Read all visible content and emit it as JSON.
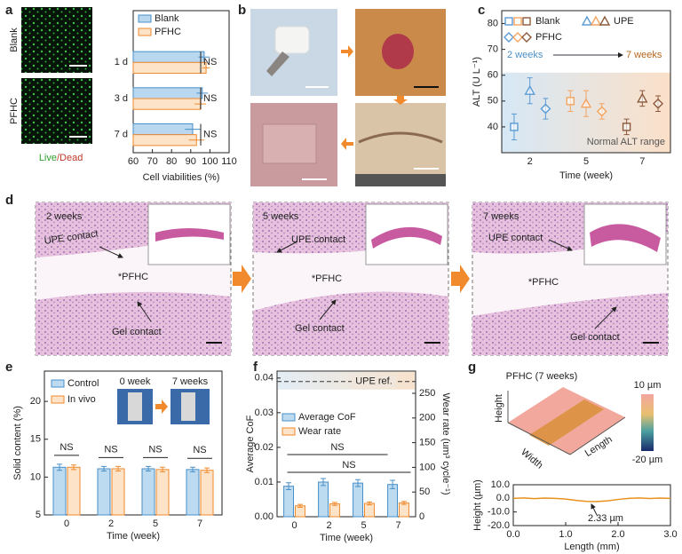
{
  "panel_labels": [
    "a",
    "b",
    "c",
    "d",
    "e",
    "f",
    "g"
  ],
  "panel_a": {
    "row_labels": [
      "Blank",
      "PFHC"
    ],
    "stain": [
      "Live",
      "/Dead"
    ]
  },
  "panel_d": {
    "sections": [
      {
        "time": "2 weeks",
        "upper": "UPE contact",
        "middle": "*PFHC",
        "lower": "Gel contact"
      },
      {
        "time": "5 weeks",
        "upper": "UPE contact",
        "middle": "*PFHC",
        "lower": "Gel contact"
      },
      {
        "time": "7 weeks",
        "upper": "UPE contact",
        "middle": "*PFHC",
        "lower": "Gel contact"
      }
    ]
  },
  "panel_g_surface": {
    "title": "PFHC (7 weeks)",
    "axes": [
      "Height",
      "Width",
      "Length"
    ],
    "colorbar": [
      "10 µm",
      "-20 µm"
    ]
  },
  "chart_data": [
    {
      "type": "bar",
      "orientation": "horizontal",
      "categories": [
        "1 d",
        "3 d",
        "7 d"
      ],
      "series": [
        {
          "name": "Blank",
          "color": "#b9d7ee",
          "edge": "#4a90c8",
          "values": [
            97,
            96,
            91
          ],
          "errors": [
            3,
            3,
            4
          ]
        },
        {
          "name": "PFHC",
          "color": "#fde3c8",
          "edge": "#f08a2c",
          "values": [
            98,
            95,
            93
          ],
          "errors": [
            2,
            3,
            4
          ]
        }
      ],
      "xlim": [
        60,
        110
      ],
      "xticks": [
        60,
        70,
        80,
        90,
        100,
        110
      ],
      "xlabel": "Cell viabilities (%)",
      "annotations": [
        "NS",
        "NS",
        "NS"
      ]
    },
    {
      "type": "scatter",
      "categories": [
        "2",
        "5",
        "7"
      ],
      "series": [
        {
          "name": "Blank",
          "marker": "square",
          "values": [
            40,
            50,
            40
          ],
          "errors": [
            5,
            4,
            3
          ]
        },
        {
          "name": "UPE",
          "marker": "triangle",
          "values": [
            54,
            49,
            51
          ],
          "errors": [
            5,
            5,
            3
          ]
        },
        {
          "name": "PFHC",
          "marker": "diamond",
          "values": [
            47,
            46,
            49
          ],
          "errors": [
            4,
            3,
            3
          ]
        }
      ],
      "colors": [
        "#5b9bd5",
        "#f4a460",
        "#8b5a3c"
      ],
      "ylim": [
        30,
        85
      ],
      "yticks": [
        40,
        50,
        60,
        70,
        80
      ],
      "ylabel": "ALT (U L⁻¹)",
      "xlabel": "Time (week)",
      "normal_range": [
        30,
        61
      ],
      "range_label": "Normal ALT range",
      "arrow_labels": [
        "2 weeks",
        "7 weeks"
      ]
    },
    {
      "type": "bar",
      "categories": [
        "0",
        "2",
        "5",
        "7"
      ],
      "series": [
        {
          "name": "Control",
          "color": "#bcdaf0",
          "edge": "#4a90c8",
          "values": [
            11.3,
            11.1,
            11.1,
            11.0
          ],
          "errors": [
            0.4,
            0.3,
            0.3,
            0.3
          ]
        },
        {
          "name": "In vivo",
          "color": "#fde3c8",
          "edge": "#f08a2c",
          "values": [
            11.3,
            11.1,
            11.0,
            10.9
          ],
          "errors": [
            0.3,
            0.3,
            0.3,
            0.3
          ]
        }
      ],
      "ylim": [
        5,
        24
      ],
      "yticks": [
        5,
        10,
        15,
        20
      ],
      "ylabel": "Solid content (%)",
      "xlabel": "Time (week)",
      "annotations": [
        "NS",
        "NS",
        "NS",
        "NS"
      ],
      "inset_labels": [
        "0 week",
        "7 weeks"
      ]
    },
    {
      "type": "bar",
      "categories": [
        "0",
        "2",
        "5",
        "7"
      ],
      "series": [
        {
          "name": "Average CoF",
          "color": "#bcdaf0",
          "edge": "#4a90c8",
          "values": [
            0.0088,
            0.01,
            0.0097,
            0.0093
          ],
          "errors": [
            0.001,
            0.001,
            0.001,
            0.0012
          ]
        },
        {
          "name": "Wear rate",
          "color": "#fde3c8",
          "edge": "#f08a2c",
          "axis": "y2",
          "values": [
            22,
            26,
            27,
            28
          ],
          "errors": [
            3,
            3,
            3,
            3
          ]
        }
      ],
      "ylim": [
        0,
        0.042
      ],
      "yticks": [
        {
          "value": 0,
          "label": "0.00"
        },
        0.01,
        0.02,
        0.03,
        0.04
      ],
      "y2lim": [
        0,
        295
      ],
      "y2ticks": [
        0,
        50,
        100,
        150,
        200,
        250
      ],
      "ylabel": "Average CoF",
      "y2label": "Wear rate (um³ cycle⁻¹)",
      "xlabel": "Time (week)",
      "reference": {
        "value": 0.039,
        "label": "UPE ref."
      },
      "annotations": [
        "NS",
        "NS"
      ]
    },
    {
      "type": "line",
      "x": [
        0,
        0.2,
        0.4,
        0.6,
        0.8,
        1.0,
        1.2,
        1.4,
        1.6,
        1.8,
        2.0,
        2.2,
        2.4,
        2.6,
        2.8,
        3.0
      ],
      "series": [
        {
          "name": "Height",
          "color": "#e8921e",
          "values": [
            0,
            0.3,
            -0.2,
            0.2,
            0,
            -0.5,
            -1.5,
            -2.2,
            -2.3,
            -1.8,
            -0.8,
            0,
            0.3,
            -0.1,
            0.2,
            0
          ]
        }
      ],
      "xlim": [
        0,
        3
      ],
      "xticks": [
        {
          "value": 0,
          "label": "0.0"
        },
        {
          "value": 1,
          "label": "1.0"
        },
        {
          "value": 2,
          "label": "2.0"
        },
        {
          "value": 3,
          "label": "3.0"
        }
      ],
      "ylim": [
        -20,
        10
      ],
      "yticks": [
        {
          "value": 10,
          "label": "10.0"
        },
        {
          "value": 0,
          "label": "0.0"
        },
        {
          "value": -10,
          "label": "-10.0"
        },
        {
          "value": -20,
          "label": "-20.0"
        }
      ],
      "xlabel": "Length (mm)",
      "ylabel": "Height (µm)",
      "annotation": "2.33 µm"
    }
  ]
}
